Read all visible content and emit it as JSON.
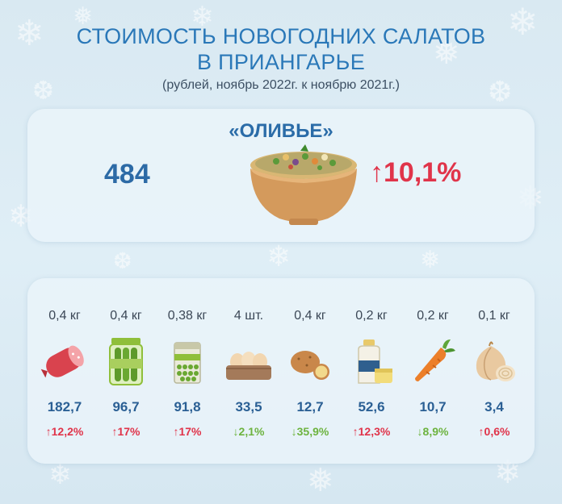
{
  "header": {
    "title_line1": "СТОИМОСТЬ НОВОГОДНИХ САЛАТОВ",
    "title_line2": "В ПРИАНГАРЬЕ",
    "subtitle": "(рублей, ноябрь 2022г. к ноябрю 2021г.)"
  },
  "salad": {
    "name": "«ОЛИВЬЕ»",
    "price": "484",
    "change": "↑10,1%"
  },
  "ingredients": [
    {
      "icon": "sausage-icon",
      "qty": "0,4 кг",
      "price": "182,7",
      "change": "↑12,2%",
      "direction": "up"
    },
    {
      "icon": "pickles-jar-icon",
      "qty": "0,4 кг",
      "price": "96,7",
      "change": "↑17%",
      "direction": "up"
    },
    {
      "icon": "peas-can-icon",
      "qty": "0,38 кг",
      "price": "91,8",
      "change": "↑17%",
      "direction": "up"
    },
    {
      "icon": "eggs-icon",
      "qty": "4 шт.",
      "price": "33,5",
      "change": "↓2,1%",
      "direction": "down"
    },
    {
      "icon": "potato-icon",
      "qty": "0,4 кг",
      "price": "12,7",
      "change": "↓35,9%",
      "direction": "down"
    },
    {
      "icon": "mayonnaise-icon",
      "qty": "0,2 кг",
      "price": "52,6",
      "change": "↑12,3%",
      "direction": "up"
    },
    {
      "icon": "carrot-icon",
      "qty": "0,2 кг",
      "price": "10,7",
      "change": "↓8,9%",
      "direction": "down"
    },
    {
      "icon": "onion-icon",
      "qty": "0,1 кг",
      "price": "3,4",
      "change": "↑0,6%",
      "direction": "up"
    }
  ],
  "colors": {
    "title": "#2a78b8",
    "increase": "#e0344a",
    "decrease": "#6db33f",
    "price": "#2a5f94"
  }
}
